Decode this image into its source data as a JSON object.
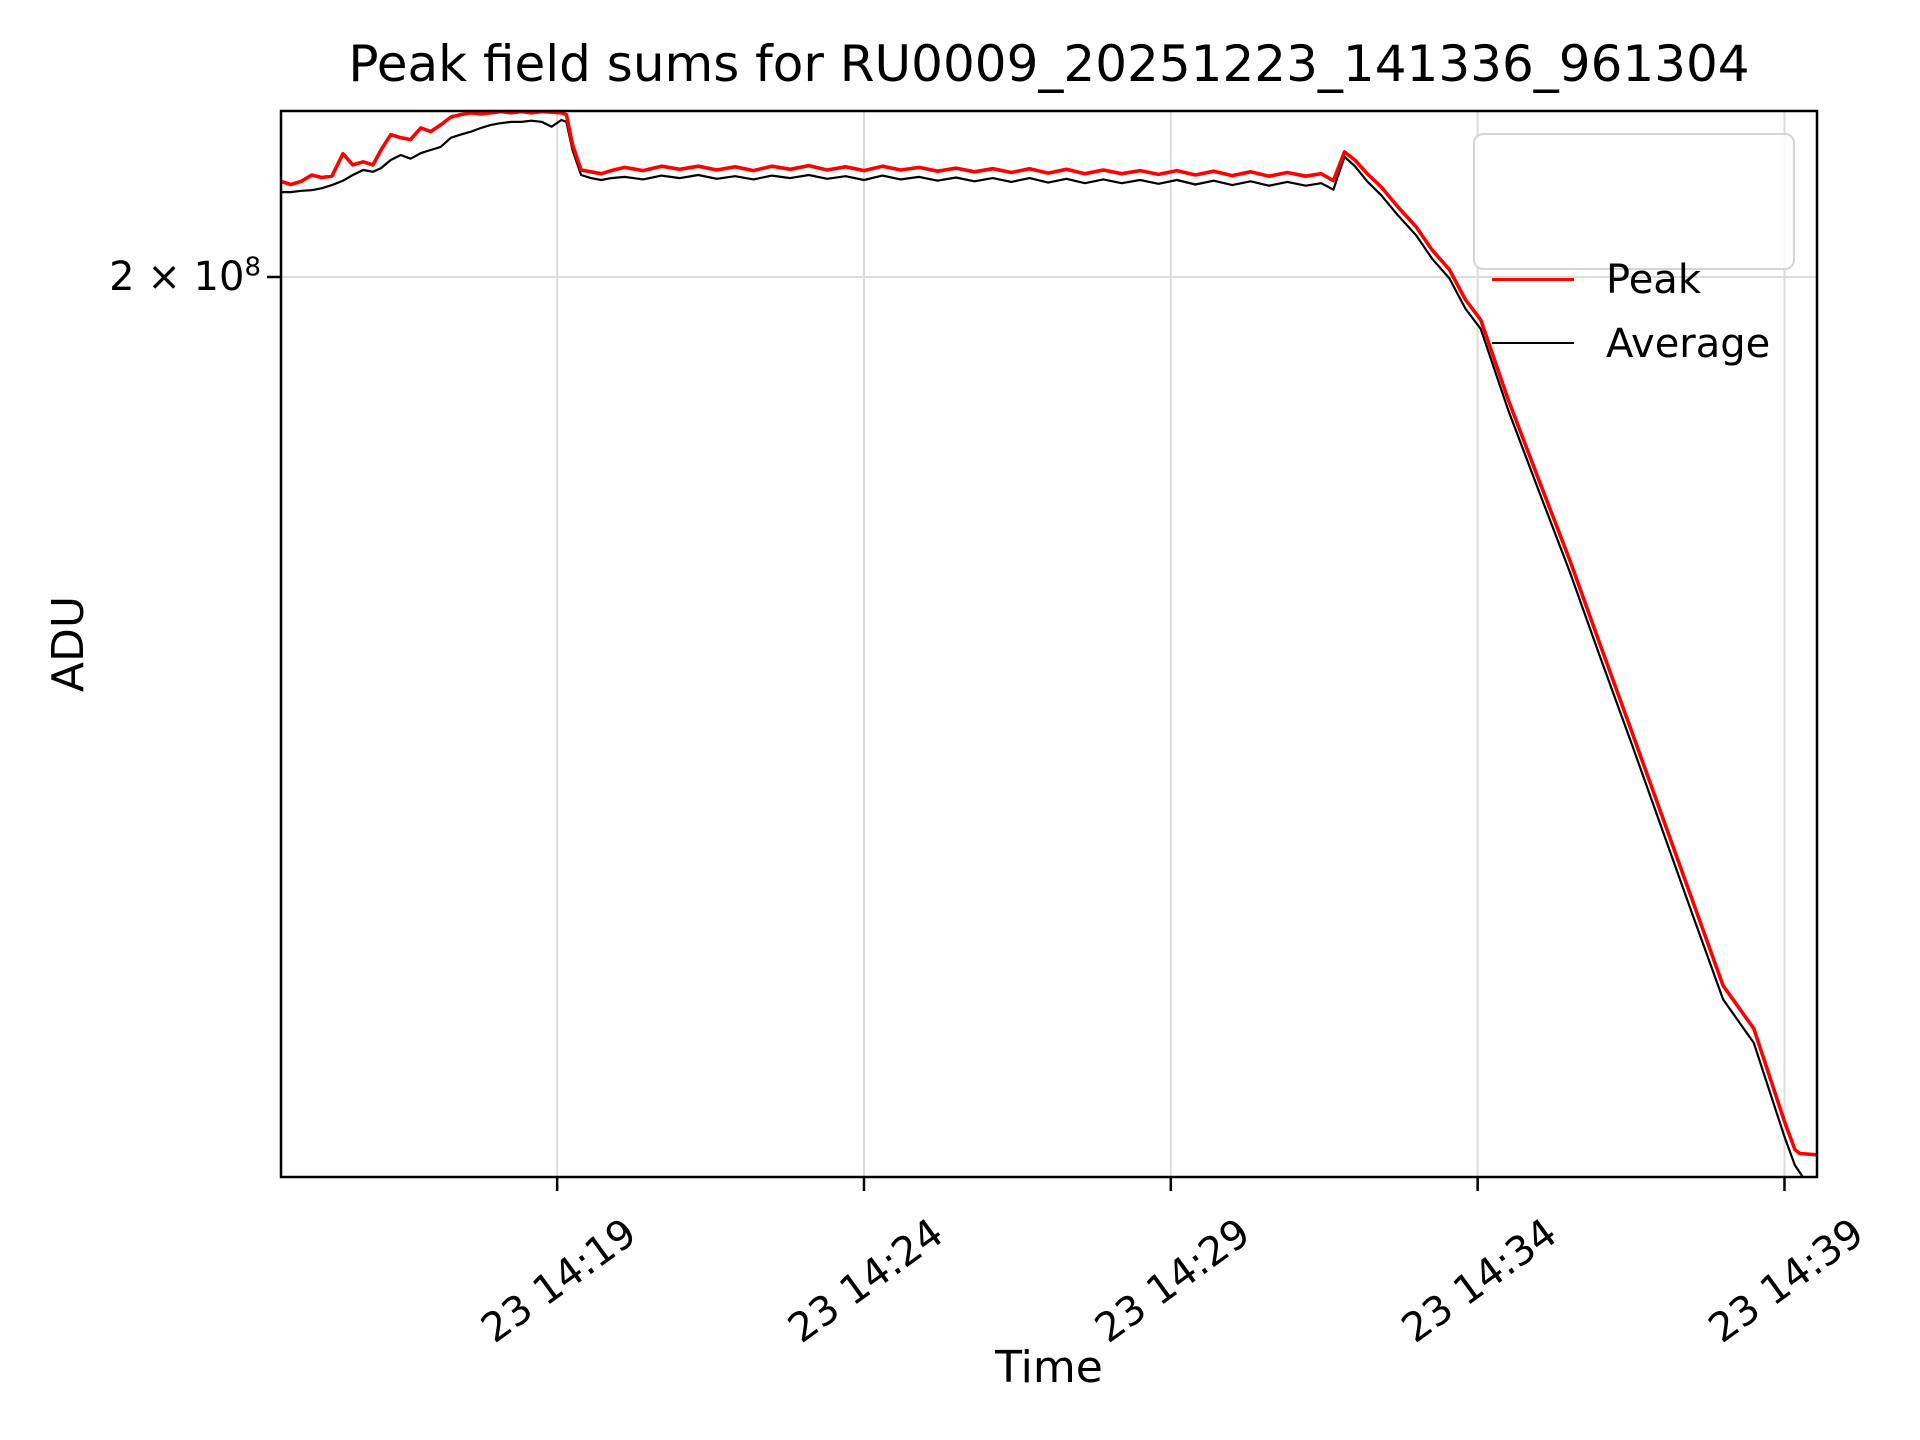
{
  "chart": {
    "title": "Peak field sums for RU0009_20251223_141336_961304",
    "xlabel": "Time",
    "ylabel": "ADU",
    "y_tick_base": "2 × 10",
    "y_tick_exp": "8"
  },
  "chart_data": {
    "type": "line",
    "title": "Peak field sums for RU0009_20251223_141336_961304",
    "xlabel": "Time",
    "ylabel": "ADU",
    "yscale": "log",
    "grid": true,
    "legend_position": "upper right",
    "x_unit": "minutes after 2025-12-23 14:00",
    "xlim": [
      14.5,
      39.53
    ],
    "ylim": [
      103100000.0,
      226000000.0
    ],
    "y_ticks": [
      {
        "value": 200000000.0,
        "label": "2 × 10⁸"
      }
    ],
    "x_ticks": [
      {
        "minute": 19,
        "label": "23 14:19"
      },
      {
        "minute": 24,
        "label": "23 14:24"
      },
      {
        "minute": 29,
        "label": "23 14:29"
      },
      {
        "minute": 34,
        "label": "23 14:34"
      },
      {
        "minute": 39,
        "label": "23 14:39"
      }
    ],
    "series": [
      {
        "name": "Peak",
        "color": "#ff0000",
        "linewidth": 3.6,
        "points": [
          [
            14.5,
            214600000.0
          ],
          [
            14.66,
            214100000.0
          ],
          [
            14.83,
            214600000.0
          ],
          [
            15.0,
            215600000.0
          ],
          [
            15.16,
            215200000.0
          ],
          [
            15.33,
            215400000.0
          ],
          [
            15.51,
            219000000.0
          ],
          [
            15.67,
            217200000.0
          ],
          [
            15.84,
            217700000.0
          ],
          [
            16.0,
            217200000.0
          ],
          [
            16.13,
            219600000.0
          ],
          [
            16.29,
            222100000.0
          ],
          [
            16.45,
            221600000.0
          ],
          [
            16.61,
            221300000.0
          ],
          [
            16.78,
            223200000.0
          ],
          [
            16.94,
            222600000.0
          ],
          [
            17.1,
            223700000.0
          ],
          [
            17.27,
            225000000.0
          ],
          [
            17.43,
            225400000.0
          ],
          [
            17.6,
            225700000.0
          ],
          [
            17.76,
            225500000.0
          ],
          [
            17.92,
            225700000.0
          ],
          [
            18.09,
            225900000.0
          ],
          [
            18.25,
            225700000.0
          ],
          [
            18.42,
            225900000.0
          ],
          [
            18.58,
            225700000.0
          ],
          [
            18.75,
            225900000.0
          ],
          [
            18.91,
            225800000.0
          ],
          [
            19.07,
            225700000.0
          ],
          [
            19.15,
            225400000.0
          ],
          [
            19.25,
            220500000.0
          ],
          [
            19.39,
            216400000.0
          ],
          [
            19.55,
            216100000.0
          ],
          [
            19.72,
            215800000.0
          ],
          [
            19.88,
            216300000.0
          ],
          [
            20.1,
            216800000.0
          ],
          [
            20.4,
            216300000.0
          ],
          [
            20.7,
            217000000.0
          ],
          [
            21.0,
            216500000.0
          ],
          [
            21.3,
            217000000.0
          ],
          [
            21.6,
            216400000.0
          ],
          [
            21.9,
            216900000.0
          ],
          [
            22.2,
            216300000.0
          ],
          [
            22.5,
            217000000.0
          ],
          [
            22.8,
            216500000.0
          ],
          [
            23.1,
            217100000.0
          ],
          [
            23.4,
            216400000.0
          ],
          [
            23.7,
            216900000.0
          ],
          [
            24.0,
            216300000.0
          ],
          [
            24.3,
            217000000.0
          ],
          [
            24.6,
            216400000.0
          ],
          [
            24.9,
            216800000.0
          ],
          [
            25.2,
            216200000.0
          ],
          [
            25.5,
            216700000.0
          ],
          [
            25.8,
            216100000.0
          ],
          [
            26.1,
            216600000.0
          ],
          [
            26.4,
            216000000.0
          ],
          [
            26.7,
            216600000.0
          ],
          [
            27.0,
            215900000.0
          ],
          [
            27.3,
            216500000.0
          ],
          [
            27.6,
            215800000.0
          ],
          [
            27.9,
            216400000.0
          ],
          [
            28.2,
            215800000.0
          ],
          [
            28.5,
            216300000.0
          ],
          [
            28.8,
            215700000.0
          ],
          [
            29.1,
            216300000.0
          ],
          [
            29.4,
            215600000.0
          ],
          [
            29.7,
            216200000.0
          ],
          [
            30.0,
            215500000.0
          ],
          [
            30.3,
            216100000.0
          ],
          [
            30.6,
            215400000.0
          ],
          [
            30.9,
            216000000.0
          ],
          [
            31.2,
            215400000.0
          ],
          [
            31.45,
            215800000.0
          ],
          [
            31.65,
            214700000.0
          ],
          [
            31.83,
            219300000.0
          ],
          [
            32.0,
            218000000.0
          ],
          [
            32.2,
            215800000.0
          ],
          [
            32.43,
            213700000.0
          ],
          [
            32.7,
            210600000.0
          ],
          [
            33.0,
            207500000.0
          ],
          [
            33.26,
            204000000.0
          ],
          [
            33.54,
            201100000.0
          ],
          [
            33.8,
            196700000.0
          ],
          [
            34.05,
            193800000.0
          ],
          [
            34.5,
            182700000.0
          ],
          [
            35.0,
            172200000.0
          ],
          [
            35.5,
            162400000.0
          ],
          [
            36.0,
            152500000.0
          ],
          [
            36.5,
            143300000.0
          ],
          [
            37.0,
            134600000.0
          ],
          [
            37.5,
            126400000.0
          ],
          [
            38.0,
            118700000.0
          ],
          [
            38.5,
            115000000.0
          ],
          [
            39.0,
            107400000.0
          ],
          [
            39.17,
            105200000.0
          ],
          [
            39.25,
            104900000.0
          ],
          [
            39.53,
            104800000.0
          ]
        ]
      },
      {
        "name": "Average",
        "color": "#000000",
        "linewidth": 2.2,
        "points": [
          [
            14.5,
            212900000.0
          ],
          [
            14.66,
            212900000.0
          ],
          [
            14.83,
            213100000.0
          ],
          [
            15.0,
            213200000.0
          ],
          [
            15.16,
            213500000.0
          ],
          [
            15.33,
            214000000.0
          ],
          [
            15.51,
            214700000.0
          ],
          [
            15.67,
            215600000.0
          ],
          [
            15.84,
            216400000.0
          ],
          [
            16.0,
            216100000.0
          ],
          [
            16.13,
            216700000.0
          ],
          [
            16.29,
            218000000.0
          ],
          [
            16.45,
            218800000.0
          ],
          [
            16.61,
            218200000.0
          ],
          [
            16.78,
            219100000.0
          ],
          [
            16.94,
            219600000.0
          ],
          [
            17.1,
            220100000.0
          ],
          [
            17.27,
            221600000.0
          ],
          [
            17.43,
            222100000.0
          ],
          [
            17.6,
            222600000.0
          ],
          [
            17.76,
            223200000.0
          ],
          [
            17.92,
            223700000.0
          ],
          [
            18.09,
            224000000.0
          ],
          [
            18.25,
            224200000.0
          ],
          [
            18.42,
            224200000.0
          ],
          [
            18.58,
            224400000.0
          ],
          [
            18.75,
            224200000.0
          ],
          [
            18.91,
            223400000.0
          ],
          [
            19.07,
            224500000.0
          ],
          [
            19.15,
            224200000.0
          ],
          [
            19.25,
            219600000.0
          ],
          [
            19.39,
            215600000.0
          ],
          [
            19.55,
            215100000.0
          ],
          [
            19.72,
            214800000.0
          ],
          [
            19.88,
            215100000.0
          ],
          [
            20.1,
            215300000.0
          ],
          [
            20.4,
            214900000.0
          ],
          [
            20.7,
            215500000.0
          ],
          [
            21.0,
            215100000.0
          ],
          [
            21.3,
            215600000.0
          ],
          [
            21.6,
            215000000.0
          ],
          [
            21.9,
            215400000.0
          ],
          [
            22.2,
            214900000.0
          ],
          [
            22.5,
            215500000.0
          ],
          [
            22.8,
            215100000.0
          ],
          [
            23.1,
            215600000.0
          ],
          [
            23.4,
            215000000.0
          ],
          [
            23.7,
            215400000.0
          ],
          [
            24.0,
            214800000.0
          ],
          [
            24.3,
            215500000.0
          ],
          [
            24.6,
            214900000.0
          ],
          [
            24.9,
            215300000.0
          ],
          [
            25.2,
            214700000.0
          ],
          [
            25.5,
            215200000.0
          ],
          [
            25.8,
            214600000.0
          ],
          [
            26.1,
            215100000.0
          ],
          [
            26.4,
            214500000.0
          ],
          [
            26.7,
            215100000.0
          ],
          [
            27.0,
            214400000.0
          ],
          [
            27.3,
            215000000.0
          ],
          [
            27.6,
            214300000.0
          ],
          [
            27.9,
            214900000.0
          ],
          [
            28.2,
            214300000.0
          ],
          [
            28.5,
            214800000.0
          ],
          [
            28.8,
            214200000.0
          ],
          [
            29.1,
            214800000.0
          ],
          [
            29.4,
            214100000.0
          ],
          [
            29.7,
            214700000.0
          ],
          [
            30.0,
            214000000.0
          ],
          [
            30.3,
            214600000.0
          ],
          [
            30.6,
            213900000.0
          ],
          [
            30.9,
            214500000.0
          ],
          [
            31.2,
            213900000.0
          ],
          [
            31.45,
            214300000.0
          ],
          [
            31.65,
            213300000.0
          ],
          [
            31.83,
            218500000.0
          ],
          [
            32.0,
            217000000.0
          ],
          [
            32.2,
            214600000.0
          ],
          [
            32.43,
            212400000.0
          ],
          [
            32.7,
            209300000.0
          ],
          [
            33.0,
            206200000.0
          ],
          [
            33.26,
            202700000.0
          ],
          [
            33.54,
            199800000.0
          ],
          [
            33.8,
            195400000.0
          ],
          [
            34.05,
            192500000.0
          ],
          [
            34.5,
            181300000.0
          ],
          [
            35.0,
            170800000.0
          ],
          [
            35.5,
            161000000.0
          ],
          [
            36.0,
            151100000.0
          ],
          [
            36.5,
            142000000.0
          ],
          [
            37.0,
            133300000.0
          ],
          [
            37.5,
            125100000.0
          ],
          [
            38.0,
            117500000.0
          ],
          [
            38.5,
            113800000.0
          ],
          [
            39.0,
            106200000.0
          ],
          [
            39.17,
            104000000.0
          ],
          [
            39.3,
            103100000.0
          ],
          [
            39.45,
            101500000.0
          ]
        ]
      }
    ],
    "colors": {
      "grid": "#dcdcdc",
      "spine": "#000000",
      "legend_border": "#d5d5d5"
    }
  }
}
